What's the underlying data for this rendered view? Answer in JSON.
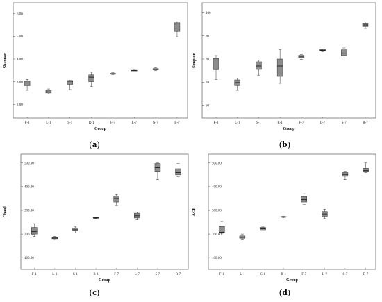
{
  "chart_data": [
    {
      "type": "box",
      "panel_label": "a",
      "ylabel": "Shannon",
      "xlabel": "Group",
      "ylim": [
        1.7,
        6.3
      ],
      "yticks": [
        "2.00",
        "3.00",
        "4.00",
        "5.00",
        "6.00"
      ],
      "ytick_values": [
        2,
        3,
        4,
        5,
        6
      ],
      "categories": [
        "F-1",
        "L-1",
        "S-1",
        "R-1",
        "F-7",
        "L-7",
        "S-7",
        "R-7"
      ],
      "boxes": [
        {
          "min": 2.62,
          "q1": 2.82,
          "median": 2.94,
          "q3": 3.02,
          "max": 3.1
        },
        {
          "min": 2.45,
          "q1": 2.5,
          "median": 2.55,
          "q3": 2.62,
          "max": 2.68
        },
        {
          "min": 2.65,
          "q1": 2.88,
          "median": 3.02,
          "q3": 3.05,
          "max": 3.06
        },
        {
          "min": 2.78,
          "q1": 3.0,
          "median": 3.2,
          "q3": 3.3,
          "max": 3.42
        },
        {
          "min": 3.31,
          "q1": 3.33,
          "median": 3.35,
          "q3": 3.37,
          "max": 3.4
        },
        {
          "min": 3.49,
          "q1": 3.5,
          "median": 3.5,
          "q3": 3.5,
          "max": 3.51
        },
        {
          "min": 3.49,
          "q1": 3.52,
          "median": 3.55,
          "q3": 3.58,
          "max": 3.62
        },
        {
          "min": 4.98,
          "q1": 5.22,
          "median": 5.55,
          "q3": 5.6,
          "max": 5.65
        }
      ]
    },
    {
      "type": "box",
      "panel_label": "b",
      "ylabel": "Simpson",
      "xlabel": "Group",
      "ylim": [
        57.5,
        102.5
      ],
      "yticks": [
        "60",
        "70",
        "80",
        "90",
        "100"
      ],
      "ytick_values": [
        60,
        70,
        80,
        90,
        100
      ],
      "categories": [
        "F-1",
        "L-1",
        "S-1",
        "R-1",
        "F-7",
        "L-7",
        "S-7",
        "R-7"
      ],
      "boxes": [
        {
          "min": 71.2,
          "q1": 75.5,
          "median": 75.5,
          "q3": 80.2,
          "max": 81.5
        },
        {
          "min": 66.5,
          "q1": 68.5,
          "median": 69.8,
          "q3": 71.0,
          "max": 71.8
        },
        {
          "min": 73.0,
          "q1": 75.5,
          "median": 77.0,
          "q3": 78.8,
          "max": 79.5
        },
        {
          "min": 69.5,
          "q1": 72.5,
          "median": 77.0,
          "q3": 80.0,
          "max": 84.0
        },
        {
          "min": 79.8,
          "q1": 80.7,
          "median": 81.2,
          "q3": 81.6,
          "max": 81.9
        },
        {
          "min": 83.2,
          "q1": 83.6,
          "median": 83.8,
          "q3": 84.1,
          "max": 84.4
        },
        {
          "min": 80.5,
          "q1": 81.5,
          "median": 82.5,
          "q3": 84.0,
          "max": 84.8
        },
        {
          "min": 93.2,
          "q1": 94.0,
          "median": 94.7,
          "q3": 95.5,
          "max": 96.0
        }
      ]
    },
    {
      "type": "box",
      "panel_label": "c",
      "ylabel": "Chao1",
      "xlabel": "Group",
      "ylim": [
        80,
        520
      ],
      "yticks": [
        "100.00",
        "200.00",
        "300.00",
        "400.00",
        "500.00"
      ],
      "ytick_values": [
        100,
        200,
        300,
        400,
        500
      ],
      "categories": [
        "F-1",
        "L-1",
        "S-1",
        "R-1",
        "F-7",
        "L-7",
        "S-7",
        "R-7"
      ],
      "boxes": [
        {
          "min": 190,
          "q1": 200,
          "median": 210,
          "q3": 228,
          "max": 244
        },
        {
          "min": 176,
          "q1": 180,
          "median": 183,
          "q3": 186,
          "max": 190
        },
        {
          "min": 205,
          "q1": 213,
          "median": 218,
          "q3": 226,
          "max": 230
        },
        {
          "min": 265,
          "q1": 267,
          "median": 268,
          "q3": 270,
          "max": 271
        },
        {
          "min": 320,
          "q1": 335,
          "median": 350,
          "q3": 360,
          "max": 367
        },
        {
          "min": 260,
          "q1": 268,
          "median": 277,
          "q3": 288,
          "max": 293
        },
        {
          "min": 430,
          "q1": 462,
          "median": 480,
          "q3": 498,
          "max": 500
        },
        {
          "min": 443,
          "q1": 450,
          "median": 460,
          "q3": 476,
          "max": 498
        }
      ]
    },
    {
      "type": "box",
      "panel_label": "d",
      "ylabel": "ACE",
      "xlabel": "Group",
      "ylim": [
        80,
        520
      ],
      "yticks": [
        "100.00",
        "200.00",
        "300.00",
        "400.00",
        "500.00"
      ],
      "ytick_values": [
        100,
        200,
        300,
        400,
        500
      ],
      "categories": [
        "F-1",
        "L-1",
        "S-1",
        "R-1",
        "F-7",
        "L-7",
        "S-7",
        "R-7"
      ],
      "boxes": [
        {
          "min": 203,
          "q1": 206,
          "median": 208,
          "q3": 232,
          "max": 253
        },
        {
          "min": 178,
          "q1": 182,
          "median": 186,
          "q3": 192,
          "max": 200
        },
        {
          "min": 205,
          "q1": 215,
          "median": 222,
          "q3": 228,
          "max": 230
        },
        {
          "min": 270,
          "q1": 271,
          "median": 272,
          "q3": 274,
          "max": 275
        },
        {
          "min": 325,
          "q1": 335,
          "median": 345,
          "q3": 358,
          "max": 370
        },
        {
          "min": 265,
          "q1": 275,
          "median": 285,
          "q3": 295,
          "max": 305
        },
        {
          "min": 430,
          "q1": 444,
          "median": 452,
          "q3": 460,
          "max": 462
        },
        {
          "min": 460,
          "q1": 462,
          "median": 468,
          "q3": 478,
          "max": 500
        }
      ]
    }
  ],
  "style": {
    "box_fill": "#8c8c8c",
    "stroke": "#333333"
  }
}
